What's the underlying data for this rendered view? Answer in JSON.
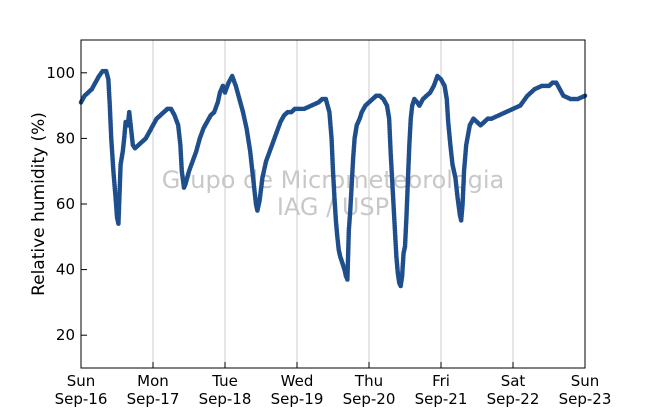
{
  "watermark": {
    "line1": "Grupo de Micrometeorologia",
    "line2": "IAG / USP"
  },
  "chart_data": {
    "type": "scatter",
    "title": "",
    "xlabel": "",
    "ylabel": "Relative humidity (%)",
    "xlim": [
      0,
      7
    ],
    "ylim": [
      10,
      110
    ],
    "yticks": [
      20,
      40,
      60,
      80,
      100
    ],
    "xticks": [
      {
        "day": 0,
        "line1": "Sun",
        "line2": "Sep-16"
      },
      {
        "day": 1,
        "line1": "Mon",
        "line2": "Sep-17"
      },
      {
        "day": 2,
        "line1": "Tue",
        "line2": "Sep-18"
      },
      {
        "day": 3,
        "line1": "Wed",
        "line2": "Sep-19"
      },
      {
        "day": 4,
        "line1": "Thu",
        "line2": "Sep-20"
      },
      {
        "day": 5,
        "line1": "Fri",
        "line2": "Sep-21"
      },
      {
        "day": 6,
        "line1": "Sat",
        "line2": "Sep-22"
      },
      {
        "day": 7,
        "line1": "Sun",
        "line2": "Sep-23"
      }
    ],
    "x_unit": "days since Sun Sep-16 00:00",
    "grid": "vertical",
    "marker_color": "#1f4e8c",
    "series": [
      {
        "points": [
          [
            0.0,
            91
          ],
          [
            0.05,
            93
          ],
          [
            0.1,
            94
          ],
          [
            0.15,
            95
          ],
          [
            0.2,
            97
          ],
          [
            0.25,
            99
          ],
          [
            0.3,
            100.5
          ],
          [
            0.35,
            100.5
          ],
          [
            0.38,
            98
          ],
          [
            0.4,
            90
          ],
          [
            0.42,
            80
          ],
          [
            0.45,
            70
          ],
          [
            0.48,
            62
          ],
          [
            0.5,
            56
          ],
          [
            0.52,
            54
          ],
          [
            0.55,
            72
          ],
          [
            0.58,
            76
          ],
          [
            0.6,
            80
          ],
          [
            0.62,
            85
          ],
          [
            0.65,
            84
          ],
          [
            0.67,
            88
          ],
          [
            0.7,
            82
          ],
          [
            0.72,
            78
          ],
          [
            0.75,
            77
          ],
          [
            0.8,
            78
          ],
          [
            0.85,
            79
          ],
          [
            0.9,
            80
          ],
          [
            0.95,
            82
          ],
          [
            1.0,
            84
          ],
          [
            1.05,
            86
          ],
          [
            1.1,
            87
          ],
          [
            1.15,
            88
          ],
          [
            1.2,
            89
          ],
          [
            1.25,
            89
          ],
          [
            1.3,
            87
          ],
          [
            1.35,
            84
          ],
          [
            1.38,
            78
          ],
          [
            1.4,
            70
          ],
          [
            1.43,
            65
          ],
          [
            1.45,
            66
          ],
          [
            1.5,
            70
          ],
          [
            1.55,
            73
          ],
          [
            1.6,
            76
          ],
          [
            1.65,
            80
          ],
          [
            1.7,
            83
          ],
          [
            1.75,
            85
          ],
          [
            1.8,
            87
          ],
          [
            1.85,
            88
          ],
          [
            1.9,
            91
          ],
          [
            1.93,
            94
          ],
          [
            1.97,
            96
          ],
          [
            2.0,
            94
          ],
          [
            2.05,
            97
          ],
          [
            2.1,
            99
          ],
          [
            2.15,
            96
          ],
          [
            2.2,
            92
          ],
          [
            2.25,
            88
          ],
          [
            2.3,
            83
          ],
          [
            2.35,
            76
          ],
          [
            2.4,
            66
          ],
          [
            2.43,
            60
          ],
          [
            2.45,
            58
          ],
          [
            2.48,
            61
          ],
          [
            2.52,
            68
          ],
          [
            2.57,
            73
          ],
          [
            2.62,
            76
          ],
          [
            2.67,
            79
          ],
          [
            2.72,
            82
          ],
          [
            2.77,
            85
          ],
          [
            2.82,
            87
          ],
          [
            2.87,
            88
          ],
          [
            2.92,
            88
          ],
          [
            2.97,
            89
          ],
          [
            3.02,
            89
          ],
          [
            3.1,
            89
          ],
          [
            3.2,
            90
          ],
          [
            3.3,
            91
          ],
          [
            3.35,
            92
          ],
          [
            3.4,
            92
          ],
          [
            3.45,
            88
          ],
          [
            3.48,
            80
          ],
          [
            3.5,
            70
          ],
          [
            3.52,
            62
          ],
          [
            3.54,
            55
          ],
          [
            3.56,
            50
          ],
          [
            3.58,
            46
          ],
          [
            3.6,
            44
          ],
          [
            3.63,
            42
          ],
          [
            3.66,
            40
          ],
          [
            3.68,
            38
          ],
          [
            3.7,
            37
          ],
          [
            3.72,
            52
          ],
          [
            3.74,
            58
          ],
          [
            3.76,
            66
          ],
          [
            3.78,
            74
          ],
          [
            3.8,
            80
          ],
          [
            3.83,
            84
          ],
          [
            3.87,
            86
          ],
          [
            3.9,
            88
          ],
          [
            3.95,
            90
          ],
          [
            4.0,
            91
          ],
          [
            4.05,
            92
          ],
          [
            4.1,
            93
          ],
          [
            4.15,
            93
          ],
          [
            4.2,
            92
          ],
          [
            4.25,
            90
          ],
          [
            4.28,
            86
          ],
          [
            4.3,
            76
          ],
          [
            4.32,
            68
          ],
          [
            4.34,
            60
          ],
          [
            4.36,
            52
          ],
          [
            4.38,
            44
          ],
          [
            4.4,
            39
          ],
          [
            4.42,
            36
          ],
          [
            4.44,
            35
          ],
          [
            4.46,
            38
          ],
          [
            4.48,
            45
          ],
          [
            4.5,
            47
          ],
          [
            4.52,
            56
          ],
          [
            4.54,
            67
          ],
          [
            4.56,
            78
          ],
          [
            4.58,
            86
          ],
          [
            4.6,
            90
          ],
          [
            4.63,
            92
          ],
          [
            4.67,
            91
          ],
          [
            4.7,
            90
          ],
          [
            4.75,
            92
          ],
          [
            4.8,
            93
          ],
          [
            4.85,
            94
          ],
          [
            4.9,
            96
          ],
          [
            4.95,
            99
          ],
          [
            5.0,
            98
          ],
          [
            5.05,
            96
          ],
          [
            5.08,
            92
          ],
          [
            5.1,
            85
          ],
          [
            5.13,
            78
          ],
          [
            5.16,
            72
          ],
          [
            5.2,
            68
          ],
          [
            5.23,
            62
          ],
          [
            5.26,
            57
          ],
          [
            5.28,
            55
          ],
          [
            5.3,
            60
          ],
          [
            5.32,
            70
          ],
          [
            5.35,
            78
          ],
          [
            5.4,
            84
          ],
          [
            5.45,
            86
          ],
          [
            5.5,
            85
          ],
          [
            5.55,
            84
          ],
          [
            5.6,
            85
          ],
          [
            5.65,
            86
          ],
          [
            5.7,
            86
          ],
          [
            5.8,
            87
          ],
          [
            5.9,
            88
          ],
          [
            6.0,
            89
          ],
          [
            6.1,
            90
          ],
          [
            6.2,
            93
          ],
          [
            6.3,
            95
          ],
          [
            6.4,
            96
          ],
          [
            6.5,
            96
          ],
          [
            6.55,
            97
          ],
          [
            6.6,
            97
          ],
          [
            6.65,
            95
          ],
          [
            6.7,
            93
          ],
          [
            6.8,
            92
          ],
          [
            6.9,
            92
          ],
          [
            7.0,
            93
          ]
        ]
      }
    ]
  }
}
